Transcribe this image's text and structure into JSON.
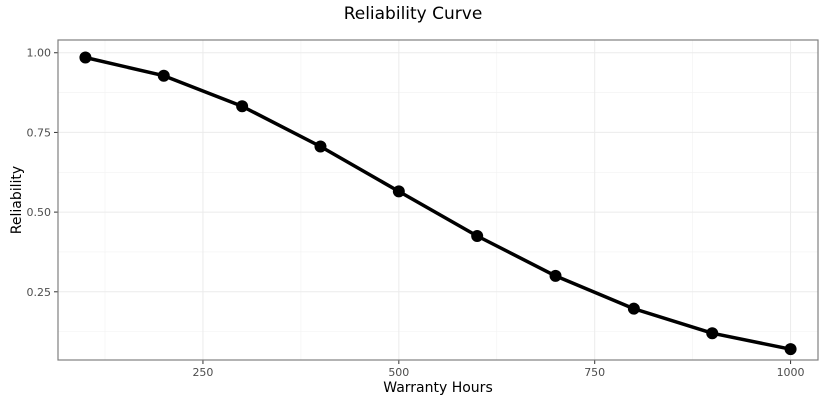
{
  "chart_data": {
    "type": "line",
    "title": "Reliability Curve",
    "xlabel": "Warranty Hours",
    "ylabel": "Reliability",
    "xlim": [
      65,
      1035
    ],
    "ylim": [
      0.036,
      1.04
    ],
    "x_ticks": [
      250,
      500,
      750,
      1000
    ],
    "y_ticks": [
      0.25,
      0.5,
      0.75,
      1.0
    ],
    "x_tick_labels": [
      "250",
      "500",
      "750",
      "1000"
    ],
    "y_tick_labels": [
      "0.25",
      "0.50",
      "0.75",
      "1.00"
    ],
    "grid": true,
    "series": [
      {
        "x": [
          100,
          200,
          300,
          400,
          500,
          600,
          700,
          800,
          900,
          1000
        ],
        "values": [
          0.985,
          0.928,
          0.832,
          0.706,
          0.565,
          0.425,
          0.3,
          0.197,
          0.12,
          0.07
        ],
        "color": "#000000"
      }
    ]
  }
}
